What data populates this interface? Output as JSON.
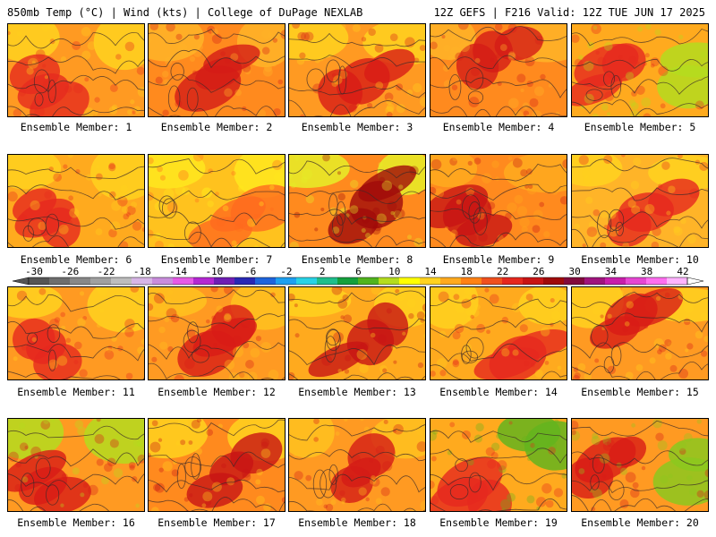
{
  "header": {
    "left": "850mb Temp (°C) | Wind (kts) | College of DuPage NEXLAB",
    "right": "12Z GEFS | F216 Valid: 12Z TUE JUN 17 2025"
  },
  "colorbar": {
    "ticks": [
      "-30",
      "-26",
      "-22",
      "-18",
      "-14",
      "-10",
      "-6",
      "-2",
      "2",
      "6",
      "10",
      "14",
      "18",
      "22",
      "26",
      "30",
      "34",
      "38",
      "42"
    ],
    "colors": [
      "#555555",
      "#6e6e6e",
      "#888888",
      "#a0a0a0",
      "#bdbdbd",
      "#d7b5e6",
      "#c98ddc",
      "#e65ae6",
      "#b428d2",
      "#6e1eb4",
      "#2828b4",
      "#1e64dc",
      "#1ea0f0",
      "#28d2e6",
      "#1ebe8c",
      "#14a03c",
      "#50b41e",
      "#b4dc1e",
      "#ffff00",
      "#ffd21e",
      "#ffaa1e",
      "#ff8214",
      "#f0501e",
      "#e6281e",
      "#c81414",
      "#a00a0a",
      "#820a3c",
      "#a0147d",
      "#c81eaa",
      "#e646d2",
      "#ff6ef0",
      "#ffb4ff"
    ]
  },
  "panels": [
    {
      "label": "Ensemble Member: 1",
      "base": "#ff9a22",
      "hot": "#e62a1e",
      "cool": "#ffd21e",
      "pattern": "sw"
    },
    {
      "label": "Ensemble Member: 2",
      "base": "#ff8a1e",
      "hot": "#d41c16",
      "cool": "#ffb428",
      "pattern": "center"
    },
    {
      "label": "Ensemble Member: 3",
      "base": "#ff9a22",
      "hot": "#d81c16",
      "cool": "#ffd21e",
      "pattern": "band"
    },
    {
      "label": "Ensemble Member: 4",
      "base": "#ff8a1e",
      "hot": "#d41c16",
      "cool": "#ffb428",
      "pattern": "north"
    },
    {
      "label": "Ensemble Member: 5",
      "base": "#ffaa1e",
      "hot": "#e6281e",
      "cool": "#b4dc1e",
      "pattern": "eastcool"
    },
    {
      "label": "Ensemble Member: 6",
      "base": "#ffaa1e",
      "hot": "#e6281e",
      "cool": "#ffd21e",
      "pattern": "sw"
    },
    {
      "label": "Ensemble Member: 7",
      "base": "#ffc21e",
      "hot": "#ff6a1e",
      "cool": "#ffe81e",
      "pattern": "mild"
    },
    {
      "label": "Ensemble Member: 8",
      "base": "#ff8a1e",
      "hot": "#a00a0a",
      "cool": "#e6ee28",
      "pattern": "diag"
    },
    {
      "label": "Ensemble Member: 9",
      "base": "#ff8a1e",
      "hot": "#c81414",
      "cool": "#ffaa1e",
      "pattern": "sw"
    },
    {
      "label": "Ensemble Member: 10",
      "base": "#ffb428",
      "hot": "#e6281e",
      "cool": "#ffd21e",
      "pattern": "band"
    },
    {
      "label": "Ensemble Member: 11",
      "base": "#ff9a22",
      "hot": "#e6281e",
      "cool": "#ffd21e",
      "pattern": "sw"
    },
    {
      "label": "Ensemble Member: 12",
      "base": "#ff9a22",
      "hot": "#d81c16",
      "cool": "#ffc21e",
      "pattern": "center"
    },
    {
      "label": "Ensemble Member: 13",
      "base": "#ffaa1e",
      "hot": "#c81414",
      "cool": "#ffd21e",
      "pattern": "band"
    },
    {
      "label": "Ensemble Member: 14",
      "base": "#ffaa1e",
      "hot": "#e6281e",
      "cool": "#ffd21e",
      "pattern": "se"
    },
    {
      "label": "Ensemble Member: 15",
      "base": "#ff9a22",
      "hot": "#d81c16",
      "cool": "#ffd21e",
      "pattern": "north"
    },
    {
      "label": "Ensemble Member: 16",
      "base": "#ff9a22",
      "hot": "#d81c16",
      "cool": "#b4dc1e",
      "pattern": "sw"
    },
    {
      "label": "Ensemble Member: 17",
      "base": "#ff8a1e",
      "hot": "#c81414",
      "cool": "#ffd21e",
      "pattern": "diag"
    },
    {
      "label": "Ensemble Member: 18",
      "base": "#ff9a22",
      "hot": "#d41c16",
      "cool": "#ffc21e",
      "pattern": "center"
    },
    {
      "label": "Ensemble Member: 19",
      "base": "#ffaa1e",
      "hot": "#e6281e",
      "cool": "#64b41e",
      "pattern": "necool"
    },
    {
      "label": "Ensemble Member: 20",
      "base": "#ff9a22",
      "hot": "#d81c16",
      "cool": "#8cc81e",
      "pattern": "eastcool"
    }
  ]
}
